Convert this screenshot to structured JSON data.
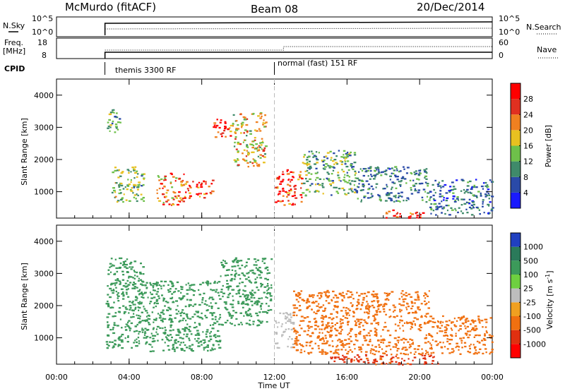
{
  "header": {
    "station": "McMurdo (fitACF)",
    "beam": "Beam 08",
    "date": "20/Dec/2014"
  },
  "status_panel": {
    "nsky_label": "N.Sky",
    "nsky_ticks": [
      "10^5",
      "10^0"
    ],
    "nsearch_label": "N.Search",
    "nsearch_ticks": [
      "10^5",
      "10^0"
    ],
    "freq_label_1": "Freq.",
    "freq_label_2": "[MHz]",
    "freq_ticks": [
      "18",
      "8"
    ],
    "nave_label": "Nave",
    "nave_ticks": [
      "60",
      "0"
    ],
    "cpid_label": "CPID",
    "modes": [
      {
        "label": "themis 3300 RF",
        "start": "02:40"
      },
      {
        "label": "normal (fast) 151 RF",
        "start": "12:00"
      }
    ]
  },
  "chart_data": [
    {
      "type": "heatmap",
      "title": "Power",
      "xlabel": "",
      "ylabel": "Slant Range [km]",
      "xlim": [
        "00:00",
        "24:00"
      ],
      "ylim": [
        180,
        4500
      ],
      "yticks": [
        1000,
        2000,
        3000,
        4000
      ],
      "colorbar": {
        "label": "Power [dB]",
        "ticks": [
          4,
          8,
          12,
          16,
          20,
          24,
          28
        ],
        "range": [
          0,
          32
        ],
        "colors": [
          "#1a1aff",
          "#2a4aa8",
          "#3f8a6a",
          "#6ec04a",
          "#e8c020",
          "#f08020",
          "#e03020",
          "#ff0000"
        ]
      },
      "regions": [
        {
          "t": [
            2.7,
            3.5
          ],
          "r": [
            2800,
            3600
          ],
          "v": 12
        },
        {
          "t": [
            3.0,
            4.8
          ],
          "r": [
            700,
            1800
          ],
          "v": 14
        },
        {
          "t": [
            5.5,
            7.0
          ],
          "r": [
            600,
            1600
          ],
          "v": 22
        },
        {
          "t": [
            7.0,
            8.6
          ],
          "r": [
            800,
            1400
          ],
          "v": 26
        },
        {
          "t": [
            8.6,
            9.6
          ],
          "r": [
            2700,
            3300
          ],
          "v": 28
        },
        {
          "t": [
            9.6,
            11.5
          ],
          "r": [
            1800,
            3500
          ],
          "v": 18
        },
        {
          "t": [
            12.0,
            13.5
          ],
          "r": [
            600,
            1700
          ],
          "v": 28
        },
        {
          "t": [
            13.5,
            16.5
          ],
          "r": [
            900,
            2300
          ],
          "v": 12
        },
        {
          "t": [
            16.5,
            20.5
          ],
          "r": [
            700,
            1800
          ],
          "v": 9
        },
        {
          "t": [
            18.0,
            20.2
          ],
          "r": [
            200,
            450
          ],
          "v": 28
        },
        {
          "t": [
            20.5,
            24.0
          ],
          "r": [
            300,
            1400
          ],
          "v": 8
        }
      ]
    },
    {
      "type": "heatmap",
      "title": "Velocity",
      "xlabel": "Time UT",
      "ylabel": "Slant Range [km]",
      "xlim": [
        "00:00",
        "24:00"
      ],
      "xticks": [
        "00:00",
        "04:00",
        "08:00",
        "12:00",
        "16:00",
        "20:00",
        "00:00"
      ],
      "ylim": [
        180,
        4500
      ],
      "yticks": [
        1000,
        2000,
        3000,
        4000
      ],
      "colorbar": {
        "label": "Velocity [m s^-1]",
        "ticks": [
          "1000",
          "500",
          "100",
          "25",
          "-25",
          "-100",
          "-500",
          "-1000"
        ],
        "colors": [
          "#2040c0",
          "#2a7a5a",
          "#3c9a5a",
          "#6ed040",
          "#bdbdbd",
          "#f0a020",
          "#f07010",
          "#e03010",
          "#ff0000"
        ]
      },
      "regions": [
        {
          "t": [
            2.7,
            4.8
          ],
          "r": [
            700,
            3500
          ],
          "v": 300
        },
        {
          "t": [
            4.8,
            9.0
          ],
          "r": [
            600,
            2800
          ],
          "v": 300
        },
        {
          "t": [
            9.0,
            11.8
          ],
          "r": [
            1400,
            3500
          ],
          "v": 200
        },
        {
          "t": [
            12.0,
            13.0
          ],
          "r": [
            700,
            1800
          ],
          "v": 0
        },
        {
          "t": [
            13.0,
            20.5
          ],
          "r": [
            500,
            2500
          ],
          "v": -300
        },
        {
          "t": [
            15.0,
            21.0
          ],
          "r": [
            180,
            500
          ],
          "v": -600
        },
        {
          "t": [
            20.5,
            24.0
          ],
          "r": [
            500,
            1700
          ],
          "v": -200
        }
      ]
    }
  ]
}
